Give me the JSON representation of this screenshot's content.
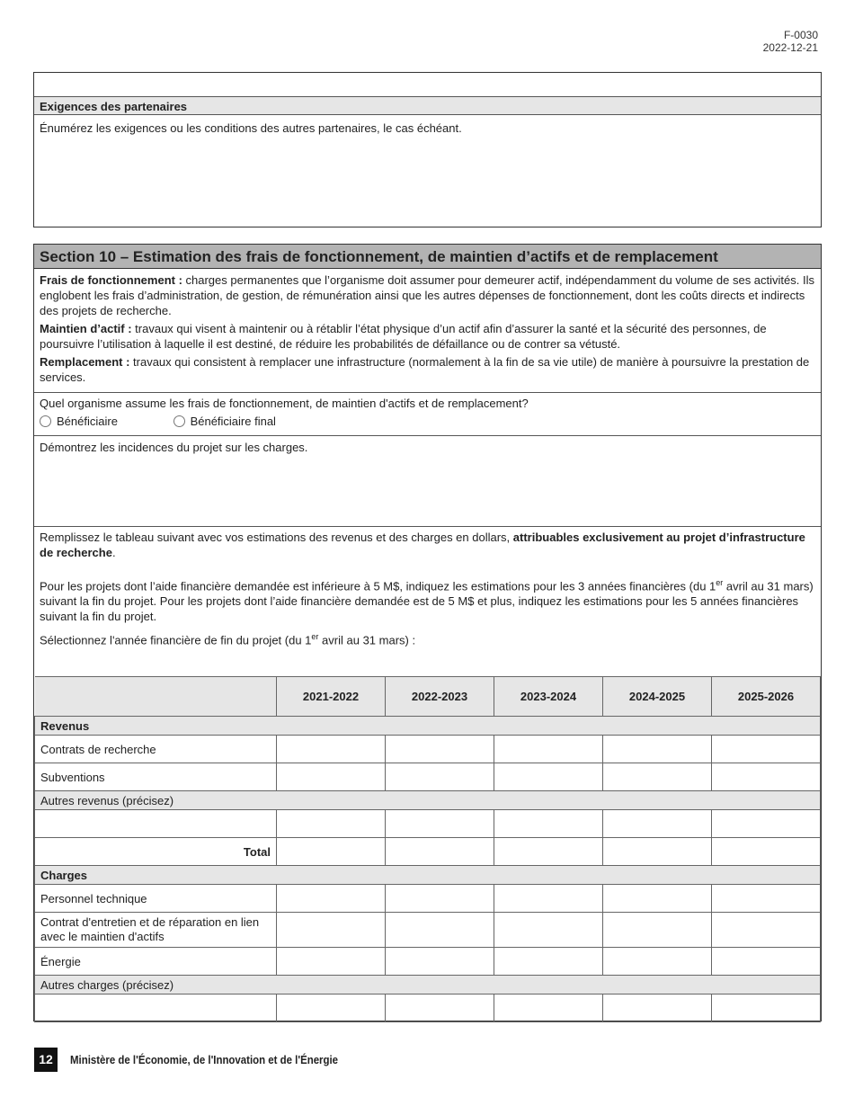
{
  "form": {
    "code": "F-0030",
    "date": "2022-12-21"
  },
  "partners": {
    "title": "Exigences des partenaires",
    "prompt": "Énumérez les exigences ou les conditions des autres partenaires, le cas échéant."
  },
  "section10": {
    "title": "Section 10 – Estimation des frais de fonctionnement, de maintien d’actifs et de remplacement",
    "defs": [
      {
        "term": "Frais de fonctionnement :",
        "text": " charges permanentes que l’organisme doit assumer pour demeurer actif, indépendamment du volume de ses activités. Ils englobent les frais d’administration, de gestion, de rémunération ainsi que les autres dépenses de fonctionnement, dont les coûts directs et indirects des projets de recherche."
      },
      {
        "term": "Maintien d’actif :",
        "text": " travaux qui visent à maintenir ou à rétablir l’état physique d’un actif afin d’assurer la santé et la sécurité des personnes, de poursuivre l’utilisation à laquelle il est destiné, de réduire les probabilités de défaillance ou de contrer sa vétusté."
      },
      {
        "term": "Remplacement :",
        "text": " travaux qui consistent à remplacer une infrastructure (normalement à la fin de sa vie utile) de manière à poursuivre la prestation de services."
      }
    ],
    "question": "Quel organisme assume les frais de fonctionnement, de maintien d'actifs et de remplacement?",
    "options": [
      "Bénéficiaire",
      "Bénéficiaire final"
    ],
    "impact_prompt": "Démontrez les incidences du projet sur les charges.",
    "instr1_a": "Remplissez le tableau suivant avec vos estimations des revenus et des charges en dollars, ",
    "instr1_b": "attribuables exclusivement au projet d’infrastructure de recherche",
    "instr1_c": ".",
    "instr2_a": "Pour les projets dont l’aide financière demandée est inférieure à 5 M$, indiquez les estimations pour les 3 années financières (du 1",
    "instr2_sup": "er",
    "instr2_b": " avril au 31 mars) suivant la fin du projet. Pour les projets dont l’aide financière demandée est de 5 M$ et plus, indiquez les estimations pour les 5 années financières suivant la fin du projet.",
    "instr3_a": "Sélectionnez l'année financière de fin du projet (du 1",
    "instr3_sup": "er",
    "instr3_b": " avril au 31 mars) :"
  },
  "table": {
    "years": [
      "2021-2022",
      "2022-2023",
      "2023-2024",
      "2024-2025",
      "2025-2026"
    ],
    "revenus": "Revenus",
    "contrats": "Contrats de recherche",
    "subventions": "Subventions",
    "autres_revenus": "Autres revenus (précisez)",
    "total": "Total",
    "charges": "Charges",
    "personnel": "Personnel technique",
    "contrat_entretien": "Contrat d'entretien et de réparation en lien avec le maintien d'actifs",
    "energie": "Énergie",
    "autres_charges": "Autres charges (précisez)"
  },
  "footer": {
    "page": "12",
    "ministry": "Ministère de l'Économie, de l'Innovation et de l'Énergie"
  }
}
